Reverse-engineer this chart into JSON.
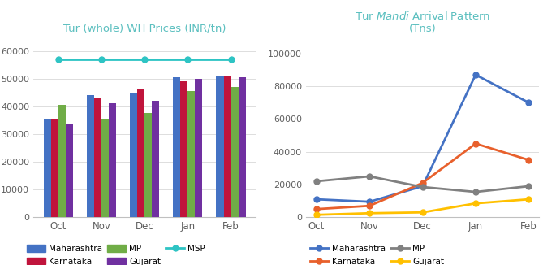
{
  "months": [
    "Oct",
    "Nov",
    "Dec",
    "Jan",
    "Feb"
  ],
  "bar_chart": {
    "title": "Tur (whole) WH Prices (INR/tn)",
    "maharashtra": [
      35500,
      44000,
      45000,
      50500,
      51000
    ],
    "karnataka": [
      35500,
      43000,
      46500,
      49000,
      51000
    ],
    "mp": [
      40500,
      35500,
      37500,
      45500,
      47000
    ],
    "gujarat": [
      33500,
      41000,
      42000,
      50000,
      50500
    ],
    "msp": [
      57000,
      57000,
      57000,
      57000,
      57000
    ],
    "ylim": [
      0,
      65000
    ],
    "yticks": [
      0,
      10000,
      20000,
      30000,
      40000,
      50000,
      60000
    ],
    "color_maharashtra": "#4472C4",
    "color_karnataka": "#C0143C",
    "color_mp": "#70AD47",
    "color_gujarat": "#7030A0",
    "color_msp": "#2EC4C4",
    "title_color": "#5ABFBF"
  },
  "line_chart": {
    "title_part1": "Tur ",
    "title_italic": "Mandi",
    "title_part2": " Arrival Pattern",
    "title_line2": "(Tns)",
    "maharashtra": [
      11000,
      9500,
      19000,
      87000,
      70000
    ],
    "karnataka": [
      5000,
      7000,
      21000,
      45000,
      35000
    ],
    "mp": [
      22000,
      25000,
      18500,
      15500,
      19000
    ],
    "gujarat": [
      1500,
      2500,
      3000,
      8500,
      11000
    ],
    "ylim": [
      0,
      110000
    ],
    "yticks": [
      0,
      20000,
      40000,
      60000,
      80000,
      100000
    ],
    "color_maharashtra": "#4472C4",
    "color_karnataka": "#E8602C",
    "color_mp": "#808080",
    "color_gujarat": "#FFC000",
    "title_color": "#5ABFBF"
  }
}
